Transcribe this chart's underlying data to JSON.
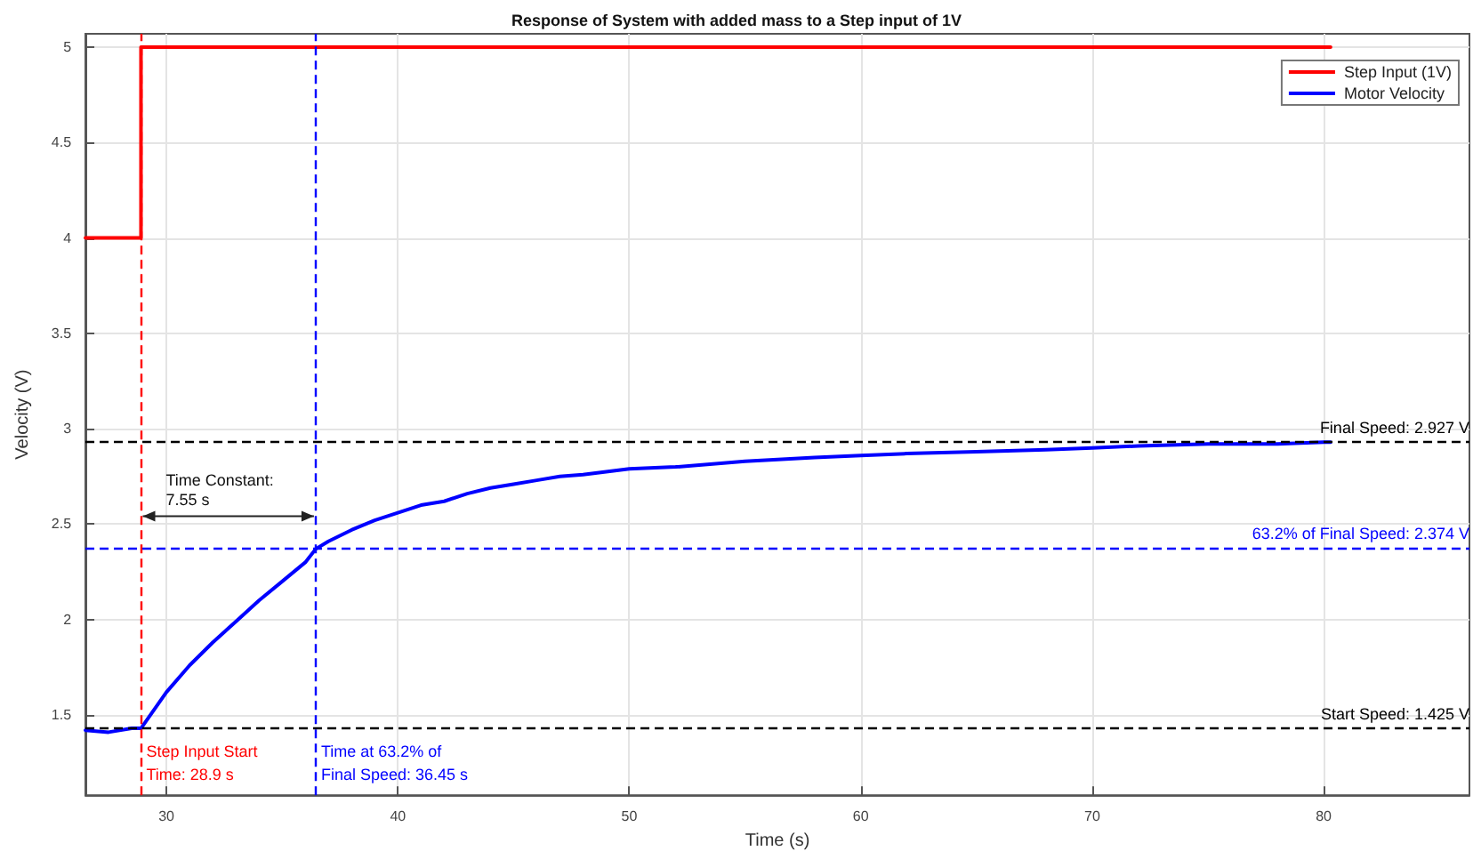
{
  "chart_data": {
    "type": "line",
    "title": "Response of System with added mass to a Step input of 1V",
    "xlabel": "Time (s)",
    "ylabel": "Velocity (V)",
    "xlim": [
      26.5,
      86.3
    ],
    "ylim": [
      1.08,
      5.07
    ],
    "xticks": [
      30,
      40,
      50,
      60,
      70,
      80
    ],
    "yticks": [
      1.5,
      2,
      2.5,
      3,
      3.5,
      4,
      4.5,
      5
    ],
    "grid": true,
    "legend": "top right",
    "marker": "none",
    "line_style": "solid",
    "series": [
      {
        "name": "Step Input (1V)",
        "type": "step",
        "color": "#ff0000",
        "x": [
          26.5,
          28.9,
          80.3
        ],
        "values": [
          4,
          5,
          5
        ]
      },
      {
        "name": "Motor Velocity",
        "color": "#0000ff",
        "x": [
          26.5,
          27.5,
          28.5,
          28.9,
          30,
          31,
          32,
          33,
          34,
          35,
          36,
          36.45,
          37,
          38,
          39,
          40,
          41,
          42,
          43,
          44,
          45,
          46,
          47,
          48,
          50,
          52,
          55,
          58,
          60,
          62,
          65,
          68,
          70,
          72,
          75,
          78,
          80,
          80.3
        ],
        "values": [
          1.42,
          1.41,
          1.43,
          1.43,
          1.62,
          1.76,
          1.88,
          1.99,
          2.1,
          2.2,
          2.3,
          2.37,
          2.41,
          2.47,
          2.52,
          2.56,
          2.6,
          2.62,
          2.66,
          2.69,
          2.71,
          2.73,
          2.75,
          2.76,
          2.79,
          2.8,
          2.83,
          2.85,
          2.86,
          2.87,
          2.88,
          2.89,
          2.9,
          2.91,
          2.92,
          2.92,
          2.93,
          2.93
        ]
      }
    ],
    "ref_lines": [
      {
        "axis": "x",
        "value": 28.9,
        "label": "Step Input Start\nTime: 28.9 s",
        "color": "#ff0000",
        "line_style": "dashed"
      },
      {
        "axis": "x",
        "value": 36.45,
        "label": "Time at 63.2% of\nFinal Speed: 36.45 s",
        "color": "#0000ff",
        "line_style": "dashed"
      },
      {
        "axis": "y",
        "value": 2.927,
        "label": "Final Speed: 2.927 V",
        "color": "#000000",
        "line_style": "dashed"
      },
      {
        "axis": "y",
        "value": 2.374,
        "label": "63.2% of Final Speed: 2.374 V",
        "color": "#0000ff",
        "line_style": "dashed"
      },
      {
        "axis": "y",
        "value": 1.425,
        "label": "Start Speed: 1.425 V",
        "color": "#000000",
        "line_style": "dashed"
      }
    ],
    "annotations": [
      "Time Constant:\n7.55 s"
    ]
  }
}
